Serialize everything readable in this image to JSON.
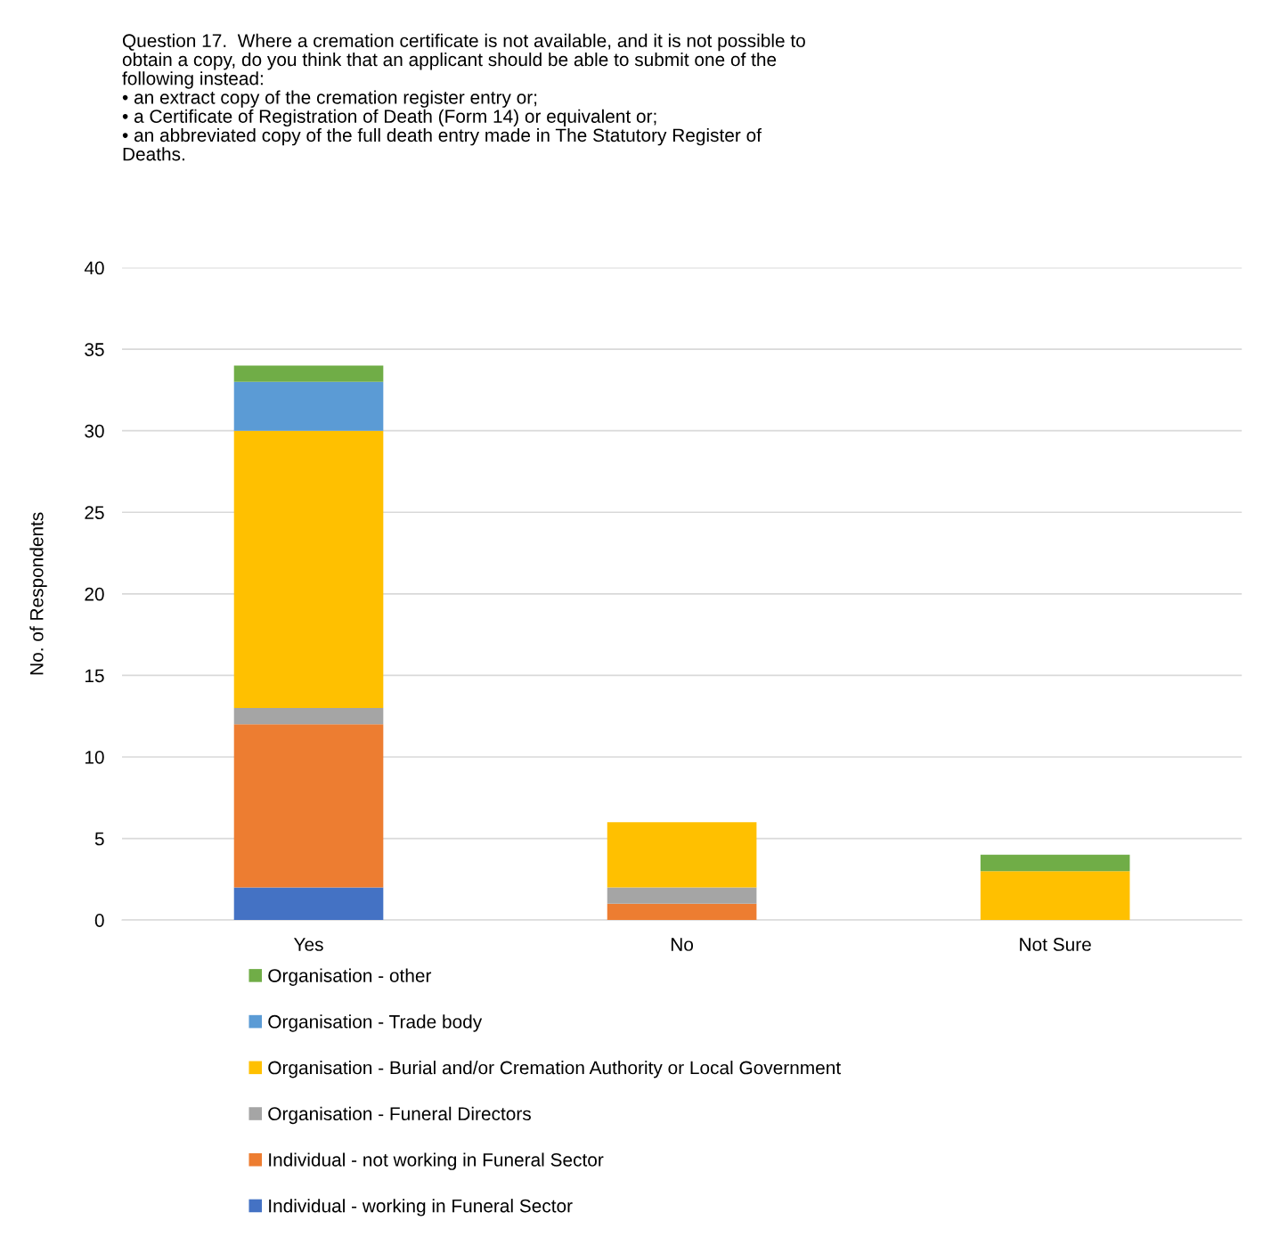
{
  "chart_data": {
    "type": "bar",
    "stacked": true,
    "title": "Question 17.  Where a cremation certificate is not available, and it is not possible to\nobtain a copy, do you think that an applicant should be able to submit one of the\nfollowing instead:\n• an extract copy of the cremation register entry or;\n• a Certificate of Registration of Death (Form 14) or equivalent or;\n• an abbreviated copy of the full death entry made in The Statutory Register of\nDeaths.",
    "ylabel": "No. of Respondents",
    "categories": [
      "Yes",
      "No",
      "Not Sure"
    ],
    "series": [
      {
        "name": "Individual - working in Funeral Sector",
        "color": "#4472c4",
        "values": [
          2,
          0,
          0
        ]
      },
      {
        "name": "Individual - not working in Funeral Sector",
        "color": "#ed7d31",
        "values": [
          10,
          1,
          0
        ]
      },
      {
        "name": "Organisation - Funeral Directors",
        "color": "#a5a5a5",
        "values": [
          1,
          1,
          0
        ]
      },
      {
        "name": "Organisation - Burial and/or Cremation Authority or Local Government",
        "color": "#ffc000",
        "values": [
          17,
          4,
          3
        ]
      },
      {
        "name": "Organisation - Trade body",
        "color": "#5b9bd5",
        "values": [
          3,
          0,
          0
        ]
      },
      {
        "name": "Organisation - other",
        "color": "#70ad47",
        "values": [
          1,
          0,
          1
        ]
      }
    ],
    "ylim": [
      0,
      40
    ],
    "yticks": [
      0,
      5,
      10,
      15,
      20,
      25,
      30,
      35,
      40
    ],
    "grid": "y",
    "legend": "bottom"
  }
}
